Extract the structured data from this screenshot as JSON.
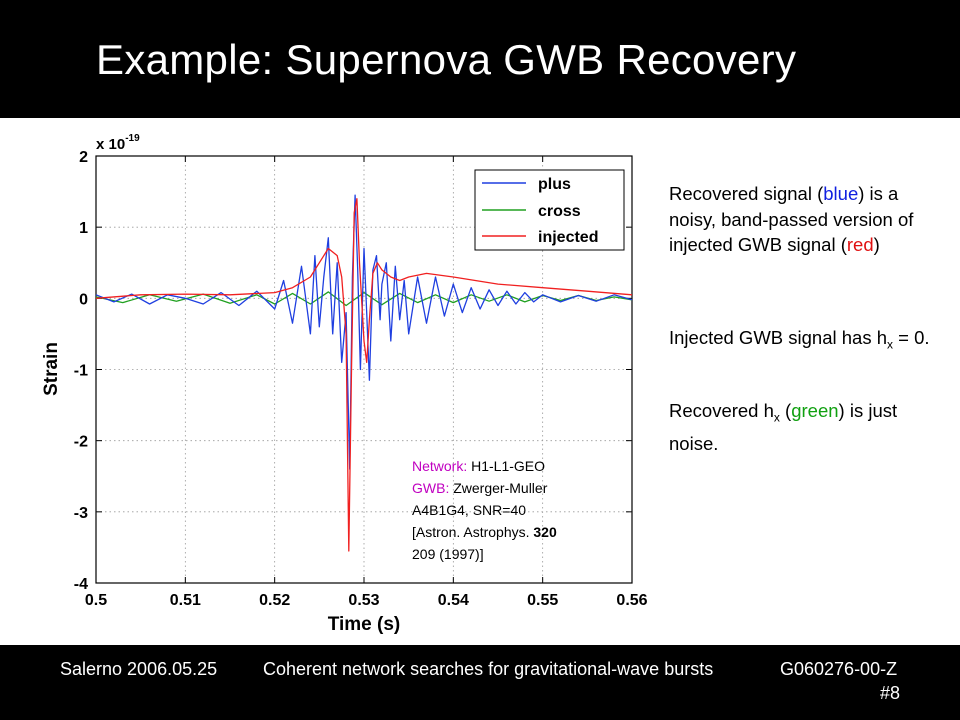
{
  "slide": {
    "title": "Example: Supernova GWB Recovery",
    "footer_left": "Salerno 2006.05.25",
    "footer_center": "Coherent network searches for gravitational-wave bursts",
    "footer_right": "G060276-00-Z",
    "page_number": "#8"
  },
  "side_text": {
    "p1_a": "Recovered signal (",
    "p1_blue": "blue",
    "p1_b": ") is a noisy, band-passed version of injected GWB signal (",
    "p1_red": "red",
    "p1_c": ")",
    "p2_a": "Injected GWB signal has h",
    "p2_sub": "x",
    "p2_b": " = 0.",
    "p3_a": "Recovered h",
    "p3_sub": "x",
    "p3_b": " (",
    "p3_green": "green",
    "p3_c": ") is just noise."
  },
  "annotation": {
    "network_label": "Network:",
    "network_value": " H1-L1-GEO",
    "gwb_label": "GWB:",
    "gwb_value": " Zwerger-Muller",
    "line3": "A4B1G4, SNR=40",
    "line4_a": "[Astron. Astrophys. ",
    "line4_b": "320",
    "line5": "209 (1997)]",
    "label_color": "#c000c0"
  },
  "chart_data": {
    "type": "line",
    "title": "",
    "xlabel": "Time (s)",
    "ylabel": "Strain",
    "y_multiplier": "x 10",
    "y_multiplier_exp": "-19",
    "xlim": [
      0.5,
      0.56
    ],
    "ylim": [
      -4,
      2
    ],
    "xticks": [
      0.5,
      0.51,
      0.52,
      0.53,
      0.54,
      0.55,
      0.56
    ],
    "xtick_labels": [
      "0.5",
      "0.51",
      "0.52",
      "0.53",
      "0.54",
      "0.55",
      "0.56"
    ],
    "yticks": [
      -4,
      -3,
      -2,
      -1,
      0,
      1,
      2
    ],
    "ytick_labels": [
      "-4",
      "-3",
      "-2",
      "-1",
      "0",
      "1",
      "2"
    ],
    "grid": true,
    "legend_position": "top-right",
    "series": [
      {
        "name": "plus",
        "color": "#1f3fe0",
        "x": [
          0.5,
          0.502,
          0.504,
          0.506,
          0.508,
          0.51,
          0.512,
          0.514,
          0.516,
          0.518,
          0.52,
          0.521,
          0.522,
          0.523,
          0.524,
          0.5245,
          0.525,
          0.5255,
          0.526,
          0.5265,
          0.527,
          0.5275,
          0.528,
          0.5284,
          0.5287,
          0.529,
          0.5293,
          0.5296,
          0.53,
          0.5303,
          0.5306,
          0.531,
          0.5314,
          0.5318,
          0.532,
          0.5325,
          0.533,
          0.5335,
          0.534,
          0.5345,
          0.535,
          0.536,
          0.537,
          0.538,
          0.539,
          0.54,
          0.541,
          0.542,
          0.543,
          0.544,
          0.545,
          0.546,
          0.547,
          0.548,
          0.549,
          0.55,
          0.552,
          0.554,
          0.556,
          0.558,
          0.56
        ],
        "y": [
          0.05,
          -0.05,
          0.06,
          -0.08,
          0.05,
          0.0,
          -0.08,
          0.08,
          -0.1,
          0.1,
          -0.15,
          0.25,
          -0.35,
          0.45,
          -0.5,
          0.6,
          -0.4,
          0.3,
          0.85,
          -0.5,
          0.5,
          -0.9,
          -0.2,
          -2.4,
          0.3,
          1.45,
          0.4,
          -1.0,
          0.7,
          -0.2,
          -1.15,
          0.4,
          0.6,
          -0.3,
          0.2,
          0.5,
          -0.6,
          0.45,
          -0.3,
          0.25,
          -0.5,
          0.3,
          -0.35,
          0.3,
          -0.25,
          0.2,
          -0.2,
          0.15,
          -0.15,
          0.12,
          -0.1,
          0.1,
          -0.08,
          0.08,
          -0.05,
          0.05,
          -0.05,
          0.04,
          -0.04,
          0.05,
          -0.02
        ]
      },
      {
        "name": "cross",
        "color": "#20a020",
        "x": [
          0.5,
          0.503,
          0.506,
          0.509,
          0.512,
          0.515,
          0.518,
          0.52,
          0.522,
          0.524,
          0.526,
          0.528,
          0.53,
          0.532,
          0.534,
          0.536,
          0.538,
          0.54,
          0.542,
          0.544,
          0.546,
          0.548,
          0.55,
          0.552,
          0.554,
          0.556,
          0.558,
          0.56
        ],
        "y": [
          0.02,
          -0.06,
          0.05,
          -0.04,
          0.06,
          -0.07,
          0.05,
          -0.08,
          0.07,
          -0.08,
          0.09,
          -0.1,
          0.08,
          -0.09,
          0.07,
          -0.06,
          0.05,
          -0.06,
          0.05,
          -0.04,
          0.05,
          -0.05,
          0.04,
          -0.03,
          0.04,
          -0.03,
          0.02,
          -0.02
        ]
      },
      {
        "name": "injected",
        "color": "#f02020",
        "x": [
          0.5,
          0.505,
          0.51,
          0.515,
          0.52,
          0.522,
          0.524,
          0.525,
          0.526,
          0.527,
          0.5275,
          0.528,
          0.5283,
          0.5286,
          0.5289,
          0.5292,
          0.5295,
          0.53,
          0.5303,
          0.5306,
          0.531,
          0.5315,
          0.532,
          0.533,
          0.534,
          0.535,
          0.537,
          0.54,
          0.545,
          0.55,
          0.555,
          0.56
        ],
        "y": [
          0.0,
          0.05,
          0.06,
          0.05,
          0.08,
          0.15,
          0.3,
          0.5,
          0.7,
          0.6,
          0.3,
          -0.5,
          -3.55,
          -1.0,
          1.2,
          1.4,
          0.5,
          -0.6,
          -0.9,
          -0.3,
          0.35,
          0.5,
          0.4,
          0.3,
          0.25,
          0.3,
          0.35,
          0.3,
          0.2,
          0.15,
          0.1,
          0.05
        ]
      }
    ]
  }
}
